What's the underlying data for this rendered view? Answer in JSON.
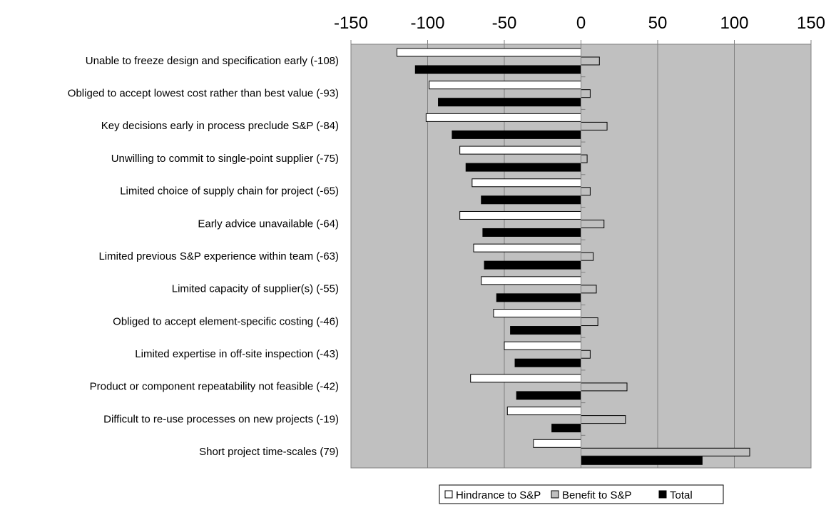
{
  "chart_data": {
    "type": "bar",
    "orientation": "horizontal",
    "categories": [
      "Unable to freeze design and specification early (-108)",
      "Obliged to accept lowest cost rather than best value (-93)",
      "Key decisions early in process preclude S&P (-84)",
      "Unwilling to commit to single-point supplier (-75)",
      "Limited choice of supply chain for project (-65)",
      "Early advice unavailable (-64)",
      "Limited previous S&P experience within team (-63)",
      "Limited capacity of supplier(s) (-55)",
      "Obliged to accept element-specific costing (-46)",
      "Limited expertise in off-site inspection (-43)",
      "Product or component repeatability not feasible (-42)",
      "Difficult to re-use processes on new projects (-19)",
      "Short project time-scales (79)"
    ],
    "series": [
      {
        "name": "Hindrance to S&P",
        "color": "#ffffff",
        "values": [
          -120,
          -99,
          -101,
          -79,
          -71,
          -79,
          -70,
          -65,
          -57,
          -50,
          -72,
          -48,
          -31
        ]
      },
      {
        "name": "Benefit to S&P",
        "color": "#c0c0c0",
        "values": [
          12,
          6,
          17,
          4,
          6,
          15,
          8,
          10,
          11,
          6,
          30,
          29,
          110
        ]
      },
      {
        "name": "Total",
        "color": "#000000",
        "values": [
          -108,
          -93,
          -84,
          -75,
          -65,
          -64,
          -63,
          -55,
          -46,
          -43,
          -42,
          -19,
          79
        ]
      }
    ],
    "xlim": [
      -150,
      150
    ],
    "xticks": [
      "-150",
      "-100",
      "-50",
      "0",
      "50",
      "100",
      "150"
    ],
    "axis_position": "top",
    "grid": true,
    "plot_background": "#c0c0c0",
    "legend_position": "bottom",
    "title": "",
    "xlabel": "",
    "ylabel": ""
  }
}
